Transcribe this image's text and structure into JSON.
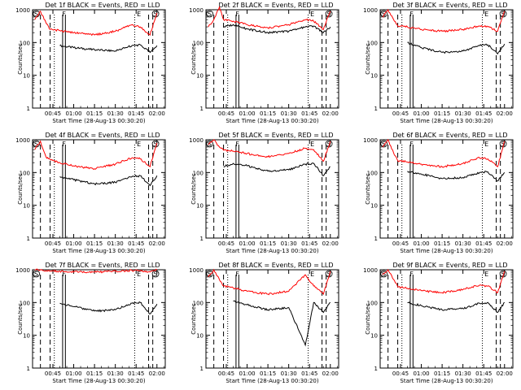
{
  "common": {
    "title_suffix": "BLACK = Events, RED = LLD",
    "xlabel": "Start Time (28-Aug-13 00:30:20)",
    "ylabel": "Counts/sec",
    "x_ticks": [
      "00:45",
      "01:00",
      "01:15",
      "01:30",
      "01:45",
      "02:00"
    ],
    "y_ticks": [
      "1",
      "10",
      "100",
      "1000"
    ],
    "markers": [
      "S",
      "F",
      "E",
      "S"
    ],
    "colors": {
      "events": "#000000",
      "lld": "#ff0000"
    }
  },
  "chart_data": [
    {
      "type": "line",
      "title": "Det 1f BLACK = Events, RED = LLD",
      "xlabel": "Start Time (28-Aug-13 00:30:20)",
      "ylabel": "Counts/sec",
      "yscale": "log",
      "ylim": [
        1,
        1000
      ],
      "series": [
        {
          "name": "Events",
          "color": "#000000",
          "x": [
            "00:43",
            "00:50",
            "01:00",
            "01:15",
            "01:30",
            "01:42",
            "01:48",
            "01:55",
            "02:00"
          ],
          "y": [
            null,
            80,
            70,
            60,
            55,
            80,
            85,
            50,
            80
          ]
        },
        {
          "name": "LLD",
          "color": "#ff0000",
          "x": [
            "00:32",
            "00:36",
            "00:40",
            "00:43",
            "00:50",
            "01:00",
            "01:15",
            "01:30",
            "01:42",
            "01:48",
            "01:55",
            "02:00"
          ],
          "y": [
            500,
            900,
            400,
            250,
            230,
            200,
            170,
            220,
            350,
            300,
            170,
            800
          ]
        }
      ]
    },
    {
      "type": "line",
      "title": "Det 2f BLACK = Events, RED = LLD",
      "xlabel": "Start Time (28-Aug-13 00:30:20)",
      "ylabel": "Counts/sec",
      "yscale": "log",
      "ylim": [
        1,
        1000
      ],
      "series": [
        {
          "name": "Events",
          "color": "#000000",
          "x": [
            "00:43",
            "00:50",
            "01:00",
            "01:15",
            "01:30",
            "01:42",
            "01:48",
            "01:55",
            "02:00"
          ],
          "y": [
            300,
            350,
            260,
            200,
            220,
            300,
            320,
            200,
            300
          ]
        },
        {
          "name": "LLD",
          "color": "#ff0000",
          "x": [
            "00:32",
            "00:36",
            "00:40",
            "00:43",
            "00:50",
            "01:00",
            "01:15",
            "01:30",
            "01:42",
            "01:48",
            "01:55",
            "02:00"
          ],
          "y": [
            300,
            500,
            1200,
            500,
            450,
            350,
            280,
            350,
            500,
            450,
            250,
            900
          ]
        }
      ]
    },
    {
      "type": "line",
      "title": "Det 3f BLACK = Events, RED = LLD",
      "xlabel": "Start Time (28-Aug-13 00:30:20)",
      "ylabel": "Counts/sec",
      "yscale": "log",
      "ylim": [
        1,
        1000
      ],
      "series": [
        {
          "name": "Events",
          "color": "#000000",
          "x": [
            "00:43",
            "00:50",
            "01:00",
            "01:15",
            "01:30",
            "01:42",
            "01:48",
            "01:55",
            "02:00"
          ],
          "y": [
            null,
            100,
            70,
            50,
            55,
            80,
            85,
            45,
            90
          ]
        },
        {
          "name": "LLD",
          "color": "#ff0000",
          "x": [
            "00:32",
            "00:36",
            "00:40",
            "00:43",
            "00:50",
            "01:00",
            "01:15",
            "01:30",
            "01:42",
            "01:48",
            "01:55",
            "02:00"
          ],
          "y": [
            600,
            1000,
            500,
            320,
            300,
            250,
            220,
            250,
            320,
            300,
            220,
            900
          ]
        }
      ]
    },
    {
      "type": "line",
      "title": "Det 4f BLACK = Events, RED = LLD",
      "xlabel": "Start Time (28-Aug-13 00:30:20)",
      "ylabel": "Counts/sec",
      "yscale": "log",
      "ylim": [
        1,
        1000
      ],
      "series": [
        {
          "name": "Events",
          "color": "#000000",
          "x": [
            "00:43",
            "00:50",
            "01:00",
            "01:15",
            "01:30",
            "01:42",
            "01:48",
            "01:55",
            "02:00"
          ],
          "y": [
            null,
            75,
            60,
            45,
            50,
            75,
            80,
            40,
            80
          ]
        },
        {
          "name": "LLD",
          "color": "#ff0000",
          "x": [
            "00:32",
            "00:36",
            "00:40",
            "00:43",
            "00:50",
            "01:00",
            "01:15",
            "01:30",
            "01:42",
            "01:48",
            "01:55",
            "02:00"
          ],
          "y": [
            500,
            900,
            300,
            250,
            200,
            160,
            130,
            180,
            280,
            260,
            150,
            800
          ]
        }
      ]
    },
    {
      "type": "line",
      "title": "Det 5f BLACK = Events, RED = LLD",
      "xlabel": "Start Time (28-Aug-13 00:30:20)",
      "ylabel": "Counts/sec",
      "yscale": "log",
      "ylim": [
        1,
        1000
      ],
      "series": [
        {
          "name": "Events",
          "color": "#000000",
          "x": [
            "00:43",
            "00:50",
            "01:00",
            "01:15",
            "01:30",
            "01:42",
            "01:48",
            "01:55",
            "02:00"
          ],
          "y": [
            150,
            190,
            160,
            110,
            120,
            180,
            190,
            80,
            150
          ]
        },
        {
          "name": "LLD",
          "color": "#ff0000",
          "x": [
            "00:32",
            "00:36",
            "00:40",
            "00:43",
            "00:50",
            "01:00",
            "01:15",
            "01:30",
            "01:42",
            "01:48",
            "01:55",
            "02:00"
          ],
          "y": [
            700,
            1000,
            600,
            480,
            450,
            380,
            300,
            380,
            550,
            500,
            220,
            900
          ]
        }
      ]
    },
    {
      "type": "line",
      "title": "Det 6f BLACK = Events, RED = LLD",
      "xlabel": "Start Time (28-Aug-13 00:30:20)",
      "ylabel": "Counts/sec",
      "yscale": "log",
      "ylim": [
        1,
        1000
      ],
      "series": [
        {
          "name": "Events",
          "color": "#000000",
          "x": [
            "00:43",
            "00:50",
            "01:00",
            "01:15",
            "01:30",
            "01:42",
            "01:48",
            "01:55",
            "02:00"
          ],
          "y": [
            null,
            110,
            90,
            65,
            70,
            100,
            105,
            55,
            100
          ]
        },
        {
          "name": "LLD",
          "color": "#ff0000",
          "x": [
            "00:32",
            "00:36",
            "00:40",
            "00:43",
            "00:50",
            "01:00",
            "01:15",
            "01:30",
            "01:42",
            "01:48",
            "01:55",
            "02:00"
          ],
          "y": [
            600,
            1000,
            400,
            230,
            210,
            180,
            150,
            190,
            280,
            260,
            150,
            900
          ]
        }
      ]
    },
    {
      "type": "line",
      "title": "Det 7f BLACK = Events, RED = LLD",
      "xlabel": "Start Time (28-Aug-13 00:30:20)",
      "ylabel": "Counts/sec",
      "yscale": "log",
      "ylim": [
        1,
        1000
      ],
      "series": [
        {
          "name": "Events",
          "color": "#000000",
          "x": [
            "00:43",
            "00:50",
            "01:00",
            "01:15",
            "01:30",
            "01:42",
            "01:48",
            "01:55",
            "02:00"
          ],
          "y": [
            null,
            95,
            75,
            55,
            60,
            95,
            100,
            45,
            90
          ]
        },
        {
          "name": "LLD",
          "color": "#ff0000",
          "x": [
            "00:32",
            "00:36",
            "00:40",
            "00:43",
            "00:50",
            "01:00",
            "01:15",
            "01:30",
            "01:42",
            "01:48",
            "01:55",
            "02:00"
          ],
          "y": [
            1000,
            1000,
            950,
            900,
            900,
            850,
            850,
            900,
            950,
            950,
            850,
            1000
          ]
        }
      ]
    },
    {
      "type": "line",
      "title": "Det 8f BLACK = Events, RED = LLD",
      "xlabel": "Start Time (28-Aug-13 00:30:20)",
      "ylabel": "Counts/sec",
      "yscale": "log",
      "ylim": [
        1,
        1000
      ],
      "series": [
        {
          "name": "Events",
          "color": "#000000",
          "x": [
            "00:43",
            "00:50",
            "01:00",
            "01:15",
            "01:30",
            "01:42",
            "01:48",
            "01:55",
            "02:00"
          ],
          "y": [
            null,
            110,
            85,
            60,
            70,
            5,
            100,
            50,
            100
          ]
        },
        {
          "name": "LLD",
          "color": "#ff0000",
          "x": [
            "00:32",
            "00:36",
            "00:40",
            "00:43",
            "00:50",
            "01:00",
            "01:15",
            "01:30",
            "01:42",
            "01:48",
            "01:55",
            "02:00"
          ],
          "y": [
            600,
            1000,
            500,
            320,
            280,
            220,
            180,
            220,
            700,
            320,
            180,
            900
          ]
        }
      ]
    },
    {
      "type": "line",
      "title": "Det 9f BLACK = Events, RED = LLD",
      "xlabel": "Start Time (28-Aug-13 00:30:20)",
      "ylabel": "Counts/sec",
      "yscale": "log",
      "ylim": [
        1,
        1000
      ],
      "series": [
        {
          "name": "Events",
          "color": "#000000",
          "x": [
            "00:43",
            "00:50",
            "01:00",
            "01:15",
            "01:30",
            "01:42",
            "01:48",
            "01:55",
            "02:00"
          ],
          "y": [
            null,
            100,
            80,
            60,
            65,
            95,
            100,
            50,
            100
          ]
        },
        {
          "name": "LLD",
          "color": "#ff0000",
          "x": [
            "00:32",
            "00:36",
            "00:40",
            "00:43",
            "00:50",
            "01:00",
            "01:15",
            "01:30",
            "01:42",
            "01:48",
            "01:55",
            "02:00"
          ],
          "y": [
            700,
            1000,
            500,
            300,
            270,
            230,
            200,
            250,
            340,
            320,
            200,
            900
          ]
        }
      ]
    }
  ]
}
